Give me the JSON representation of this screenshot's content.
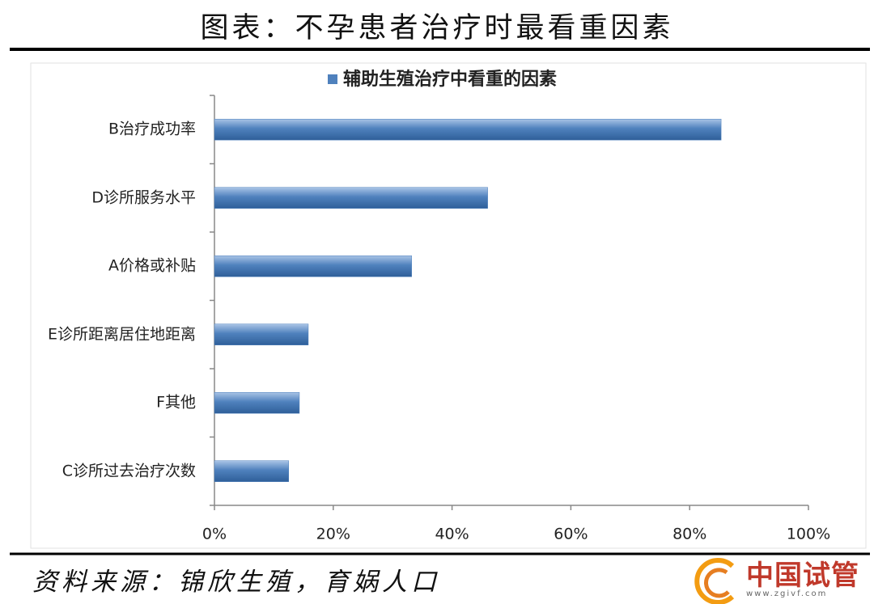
{
  "chart_data": {
    "type": "bar",
    "orientation": "horizontal",
    "title": "图表：不孕患者治疗时最看重因素",
    "categories": [
      "B治疗成功率",
      "D诊所服务水平",
      "A价格或补贴",
      "E诊所距离居住地距离",
      "F其他",
      "C诊所过去治疗次数"
    ],
    "series": [
      {
        "name": "辅助生殖治疗中看重的因素",
        "color": "#4f81bd",
        "values": [
          85.3,
          46,
          33.2,
          15.8,
          14.3,
          12.5
        ]
      }
    ],
    "xlim": [
      0,
      100
    ],
    "xticks": [
      {
        "value": 0,
        "label": "0%"
      },
      {
        "value": 20,
        "label": "20%"
      },
      {
        "value": 40,
        "label": "40%"
      },
      {
        "value": 60,
        "label": "60%"
      },
      {
        "value": 80,
        "label": "80%"
      },
      {
        "value": 100,
        "label": "100%"
      }
    ],
    "grid": false,
    "legend": "top"
  },
  "source": "资料来源：锦欣生殖，育娲人口",
  "watermark": {
    "name": "中国试管",
    "url": "www.zgivf.com"
  }
}
